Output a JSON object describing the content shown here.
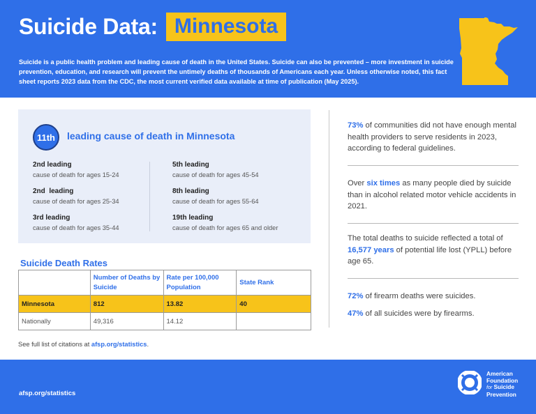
{
  "header": {
    "title": "Suicide Data:",
    "state": "Minnesota",
    "intro": "Suicide is a public health problem and leading cause of death in the United States. Suicide can also be prevented – more investment in suicide prevention, education, and research will prevent the untimely deaths of thousands of Americans each year. Unless otherwise noted, this fact sheet reports 2023 data from the CDC, the most current verified data available at time of publication (May 2025).",
    "map_icon": "minnesota-state-shape"
  },
  "leading_cause": {
    "rank": "11th",
    "text": "leading cause of death in Minnesota",
    "left": [
      {
        "title": "2nd leading",
        "sub": "cause of death for ages 15-24"
      },
      {
        "title": "2nd  leading",
        "sub": "cause of death for ages 25-34"
      },
      {
        "title": "3rd leading",
        "sub": "cause of death for ages 35-44"
      }
    ],
    "right": [
      {
        "title": "5th leading",
        "sub": "cause of death for ages 45-54"
      },
      {
        "title": "8th leading",
        "sub": "cause of death for ages 55-64"
      },
      {
        "title": "19th leading",
        "sub": "cause of death for ages 65 and older"
      }
    ]
  },
  "rates": {
    "title": "Suicide Death Rates",
    "columns": [
      "",
      "Number of Deaths by Suicide",
      "Rate per 100,000 Population",
      "State Rank"
    ],
    "rows": [
      {
        "name": "Minnesota",
        "deaths": "812",
        "rate": "13.82",
        "rank": "40"
      },
      {
        "name": "Nationally",
        "deaths": "49,316",
        "rate": "14.12",
        "rank": ""
      }
    ]
  },
  "citation": {
    "prefix": "See full list of citations at ",
    "link": "afsp.org/statistics",
    "suffix": "."
  },
  "stats": {
    "s1": {
      "em": "73%",
      "rest": " of communities did not have enough mental health providers to serve residents in 2023, according to federal guidelines."
    },
    "s2": {
      "pre": "Over ",
      "em": "six times",
      "rest": " as many people died by suicide than in alcohol related motor vehicle accidents in 2021."
    },
    "s3": {
      "pre": "The total deaths to suicide reflected a total of ",
      "em": "16,577 years",
      "rest": " of potential life lost (YPLL) before age 65."
    },
    "s4": {
      "em": "72%",
      "rest": " of firearm deaths were suicides."
    },
    "s5": {
      "em": "47%",
      "rest": " of all suicides were by firearms."
    }
  },
  "footer": {
    "link": "afsp.org/statistics",
    "org_line1": "American",
    "org_line2": "Foundation",
    "org_line3": "for",
    "org_line4": "Suicide",
    "org_line5": "Prevention",
    "logo_icon": "life-ring-icon"
  },
  "colors": {
    "brand_blue": "#2f6fe8",
    "highlight_yellow": "#f7c31a",
    "panel_bg": "#e9eef9"
  }
}
